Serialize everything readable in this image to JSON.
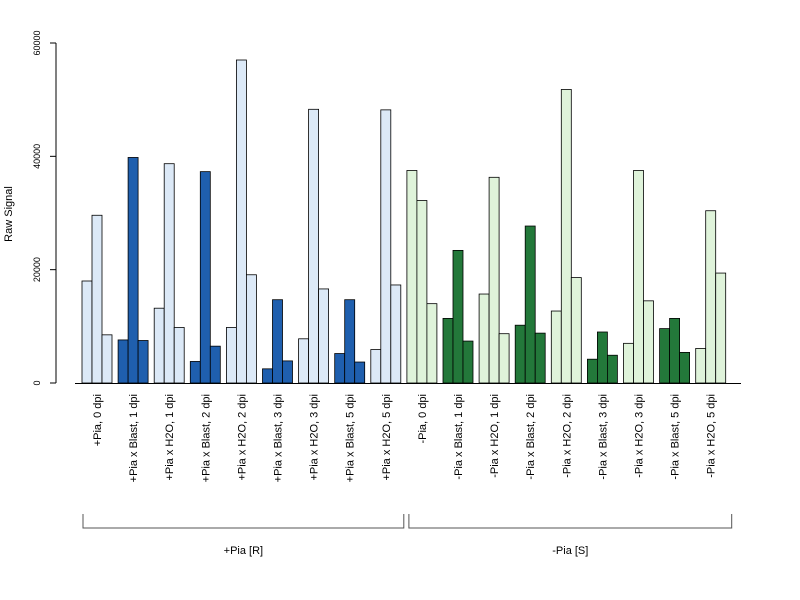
{
  "chart_data": {
    "type": "bar",
    "title": "",
    "xlabel": "",
    "ylabel": "Raw Signal",
    "ylim": [
      0,
      60000
    ],
    "yticks": [
      0,
      20000,
      40000,
      60000
    ],
    "grid": false,
    "categories": [
      "+Pia, 0 dpi",
      "+Pia x Blast, 1 dpi",
      "+Pia x H2O, 1 dpi",
      "+Pia x Blast, 2 dpi",
      "+Pia x H2O, 2 dpi",
      "+Pia x Blast, 3 dpi",
      "+Pia x H2O, 3 dpi",
      "+Pia x Blast, 5 dpi",
      "+Pia x H2O, 5 dpi",
      "-Pia, 0 dpi",
      "-Pia x Blast, 1 dpi",
      "-Pia x H2O, 1 dpi",
      "-Pia x Blast, 2 dpi",
      "-Pia x H2O, 2 dpi",
      "-Pia x Blast, 3 dpi",
      "-Pia x H2O, 3 dpi",
      "-Pia x Blast, 5 dpi",
      "-Pia x H2O, 5 dpi"
    ],
    "series": [
      {
        "values": [
          18000,
          7600,
          13200,
          3800,
          9800,
          2500,
          7800,
          5200,
          5900,
          37500,
          11400,
          15700,
          10200,
          12700,
          4200,
          7000,
          9600,
          6100
        ]
      },
      {
        "values": [
          29600,
          39800,
          38700,
          37300,
          57000,
          14700,
          48300,
          14700,
          48200,
          32200,
          23400,
          36300,
          27700,
          51800,
          9000,
          37500,
          11400,
          30400
        ]
      },
      {
        "values": [
          8500,
          7500,
          9800,
          6500,
          19100,
          3900,
          16600,
          3700,
          17300,
          14000,
          7400,
          8700,
          8800,
          18600,
          4900,
          14500,
          5400,
          19400
        ]
      }
    ],
    "bar_colors": [
      "#dce9f7",
      "#1f5fae",
      "#dff3da",
      "#23783a"
    ],
    "groups": [
      {
        "label": "+Pia [R]"
      },
      {
        "label": "-Pia [S]"
      }
    ]
  }
}
